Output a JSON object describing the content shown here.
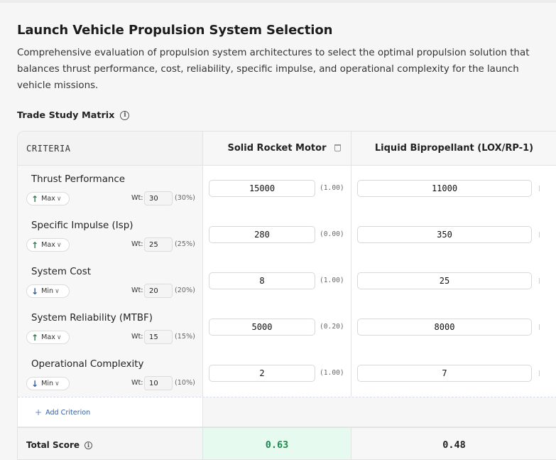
{
  "page": {
    "title": "Launch Vehicle Propulsion System Selection",
    "description": "Comprehensive evaluation of propulsion system architectures to select the optimal propulsion solution that balances thrust performance, cost, reliability, specific impulse, and operational complexity for the launch vehicle missions."
  },
  "matrix": {
    "section_title": "Trade Study Matrix",
    "criteria_header": "CRITERIA",
    "options": [
      {
        "name": "Solid Rocket Motor"
      },
      {
        "name": "Liquid Bipropellant (LOX/RP-1)"
      }
    ],
    "weight_label": "Wt:",
    "criteria": [
      {
        "name": "Thrust Performance",
        "direction": "Max",
        "direction_icon": "arrow-up-icon",
        "weight": "30",
        "weight_pct": "(30%)",
        "values": [
          "15000",
          "11000"
        ],
        "normalized": [
          "(1.00)"
        ]
      },
      {
        "name": "Specific Impulse (Isp)",
        "direction": "Max",
        "direction_icon": "arrow-up-icon",
        "weight": "25",
        "weight_pct": "(25%)",
        "values": [
          "280",
          "350"
        ],
        "normalized": [
          "(0.00)"
        ]
      },
      {
        "name": "System Cost",
        "direction": "Min",
        "direction_icon": "arrow-down-icon",
        "weight": "20",
        "weight_pct": "(20%)",
        "values": [
          "8",
          "25"
        ],
        "normalized": [
          "(1.00)"
        ]
      },
      {
        "name": "System Reliability (MTBF)",
        "direction": "Max",
        "direction_icon": "arrow-up-icon",
        "weight": "15",
        "weight_pct": "(15%)",
        "values": [
          "5000",
          "8000"
        ],
        "normalized": [
          "(0.20)"
        ]
      },
      {
        "name": "Operational Complexity",
        "direction": "Min",
        "direction_icon": "arrow-down-icon",
        "weight": "10",
        "weight_pct": "(10%)",
        "values": [
          "2",
          "7"
        ],
        "normalized": [
          "(1.00)"
        ]
      }
    ],
    "add_criterion_label": "Add Criterion",
    "total_label": "Total Score",
    "totals": [
      "0.63",
      "0.48"
    ],
    "colors": {
      "best_score_bg": "#e7faf0",
      "best_score_text": "#1d8a4f",
      "max_arrow": "#2e7d4f",
      "min_arrow": "#2f5fa7"
    }
  }
}
